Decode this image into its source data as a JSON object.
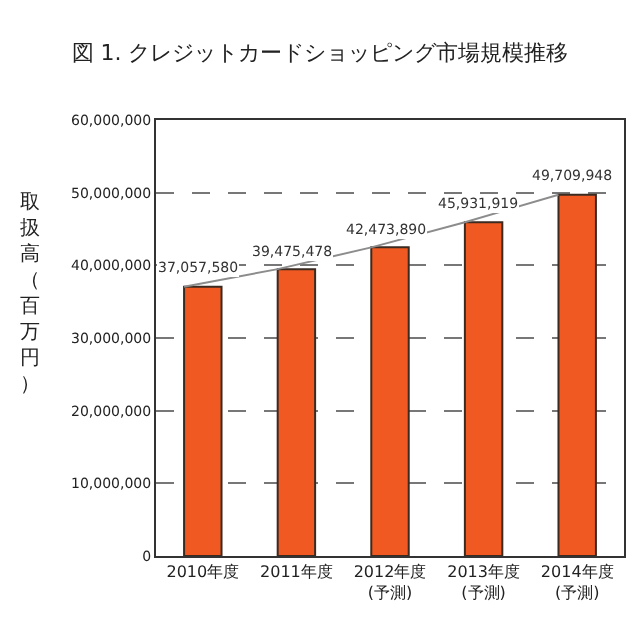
{
  "chart_data": {
    "type": "bar",
    "title": "図 1. クレジットカードショッピング市場規模推移",
    "ylabel": "取扱高（百万円）",
    "categories": [
      "2010年度",
      "2011年度",
      "2012年度(予測)",
      "2013年度(予測)",
      "2014年度(予測)"
    ],
    "series": [
      {
        "color": "#f05a22",
        "values": [
          37057580,
          39475478,
          42473890,
          45931919,
          49709948
        ]
      },
      {
        "type": "line",
        "color": "#8c8c8c",
        "values": [
          37057580,
          39475478,
          42473890,
          45931919,
          49709948
        ],
        "value_labels": [
          "37,057,580",
          "39,475,478",
          "42,473,890",
          "45,931,919",
          "49,709,948"
        ]
      }
    ],
    "ylim": [
      0,
      60000000
    ],
    "yticks": [
      {
        "value": 0,
        "label": "0"
      },
      {
        "value": 10000000,
        "label": "10,000,000"
      },
      {
        "value": 20000000,
        "label": "20,000,000"
      },
      {
        "value": 30000000,
        "label": "30,000,000"
      },
      {
        "value": 40000000,
        "label": "40,000,000"
      },
      {
        "value": 50000000,
        "label": "50,000,000"
      },
      {
        "value": 60000000,
        "label": "60,000,000"
      }
    ],
    "grid": "y",
    "legend": false,
    "marker": "none"
  }
}
